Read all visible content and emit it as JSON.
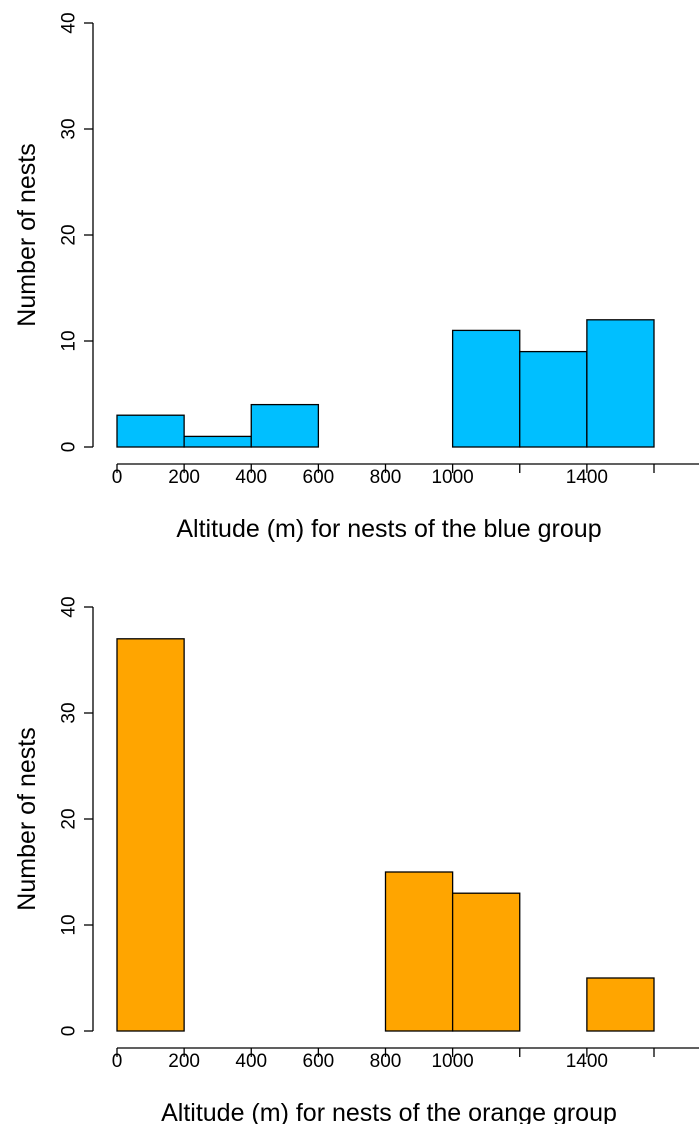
{
  "chart_data": [
    {
      "type": "bar",
      "bin_edges": [
        0,
        200,
        400,
        600,
        800,
        1000,
        1200,
        1400,
        1600
      ],
      "values": [
        3,
        1,
        4,
        0,
        0,
        11,
        9,
        12
      ],
      "fill_color": "#00BFFF",
      "xlabel": "Altitude (m) for nests of the blue group",
      "ylabel": "Number of nests",
      "xlim": [
        0,
        1600
      ],
      "ylim": [
        0,
        40
      ],
      "x_tick_values": [
        0,
        200,
        400,
        600,
        800,
        1000,
        1200,
        1400,
        1600
      ],
      "x_tick_labels": [
        "0",
        "200",
        "400",
        "600",
        "800",
        "1000",
        "",
        "1400",
        ""
      ],
      "y_ticks": [
        0,
        10,
        20,
        30,
        40
      ],
      "y_tick_labels": [
        "0",
        "10",
        "20",
        "30",
        "40"
      ],
      "grid": false,
      "legend": "none"
    },
    {
      "type": "bar",
      "bin_edges": [
        0,
        200,
        400,
        600,
        800,
        1000,
        1200,
        1400,
        1600
      ],
      "values": [
        37,
        0,
        0,
        0,
        15,
        13,
        0,
        5
      ],
      "fill_color": "#FFA500",
      "xlabel": "Altitude (m) for nests of the orange group",
      "ylabel": "Number of nests",
      "xlim": [
        0,
        1600
      ],
      "ylim": [
        0,
        40
      ],
      "x_tick_values": [
        0,
        200,
        400,
        600,
        800,
        1000,
        1200,
        1400,
        1600
      ],
      "x_tick_labels": [
        "0",
        "200",
        "400",
        "600",
        "800",
        "1000",
        "",
        "1400",
        ""
      ],
      "y_ticks": [
        0,
        10,
        20,
        30,
        40
      ],
      "y_tick_labels": [
        "0",
        "10",
        "20",
        "30",
        "40"
      ],
      "grid": false,
      "legend": "none"
    }
  ]
}
